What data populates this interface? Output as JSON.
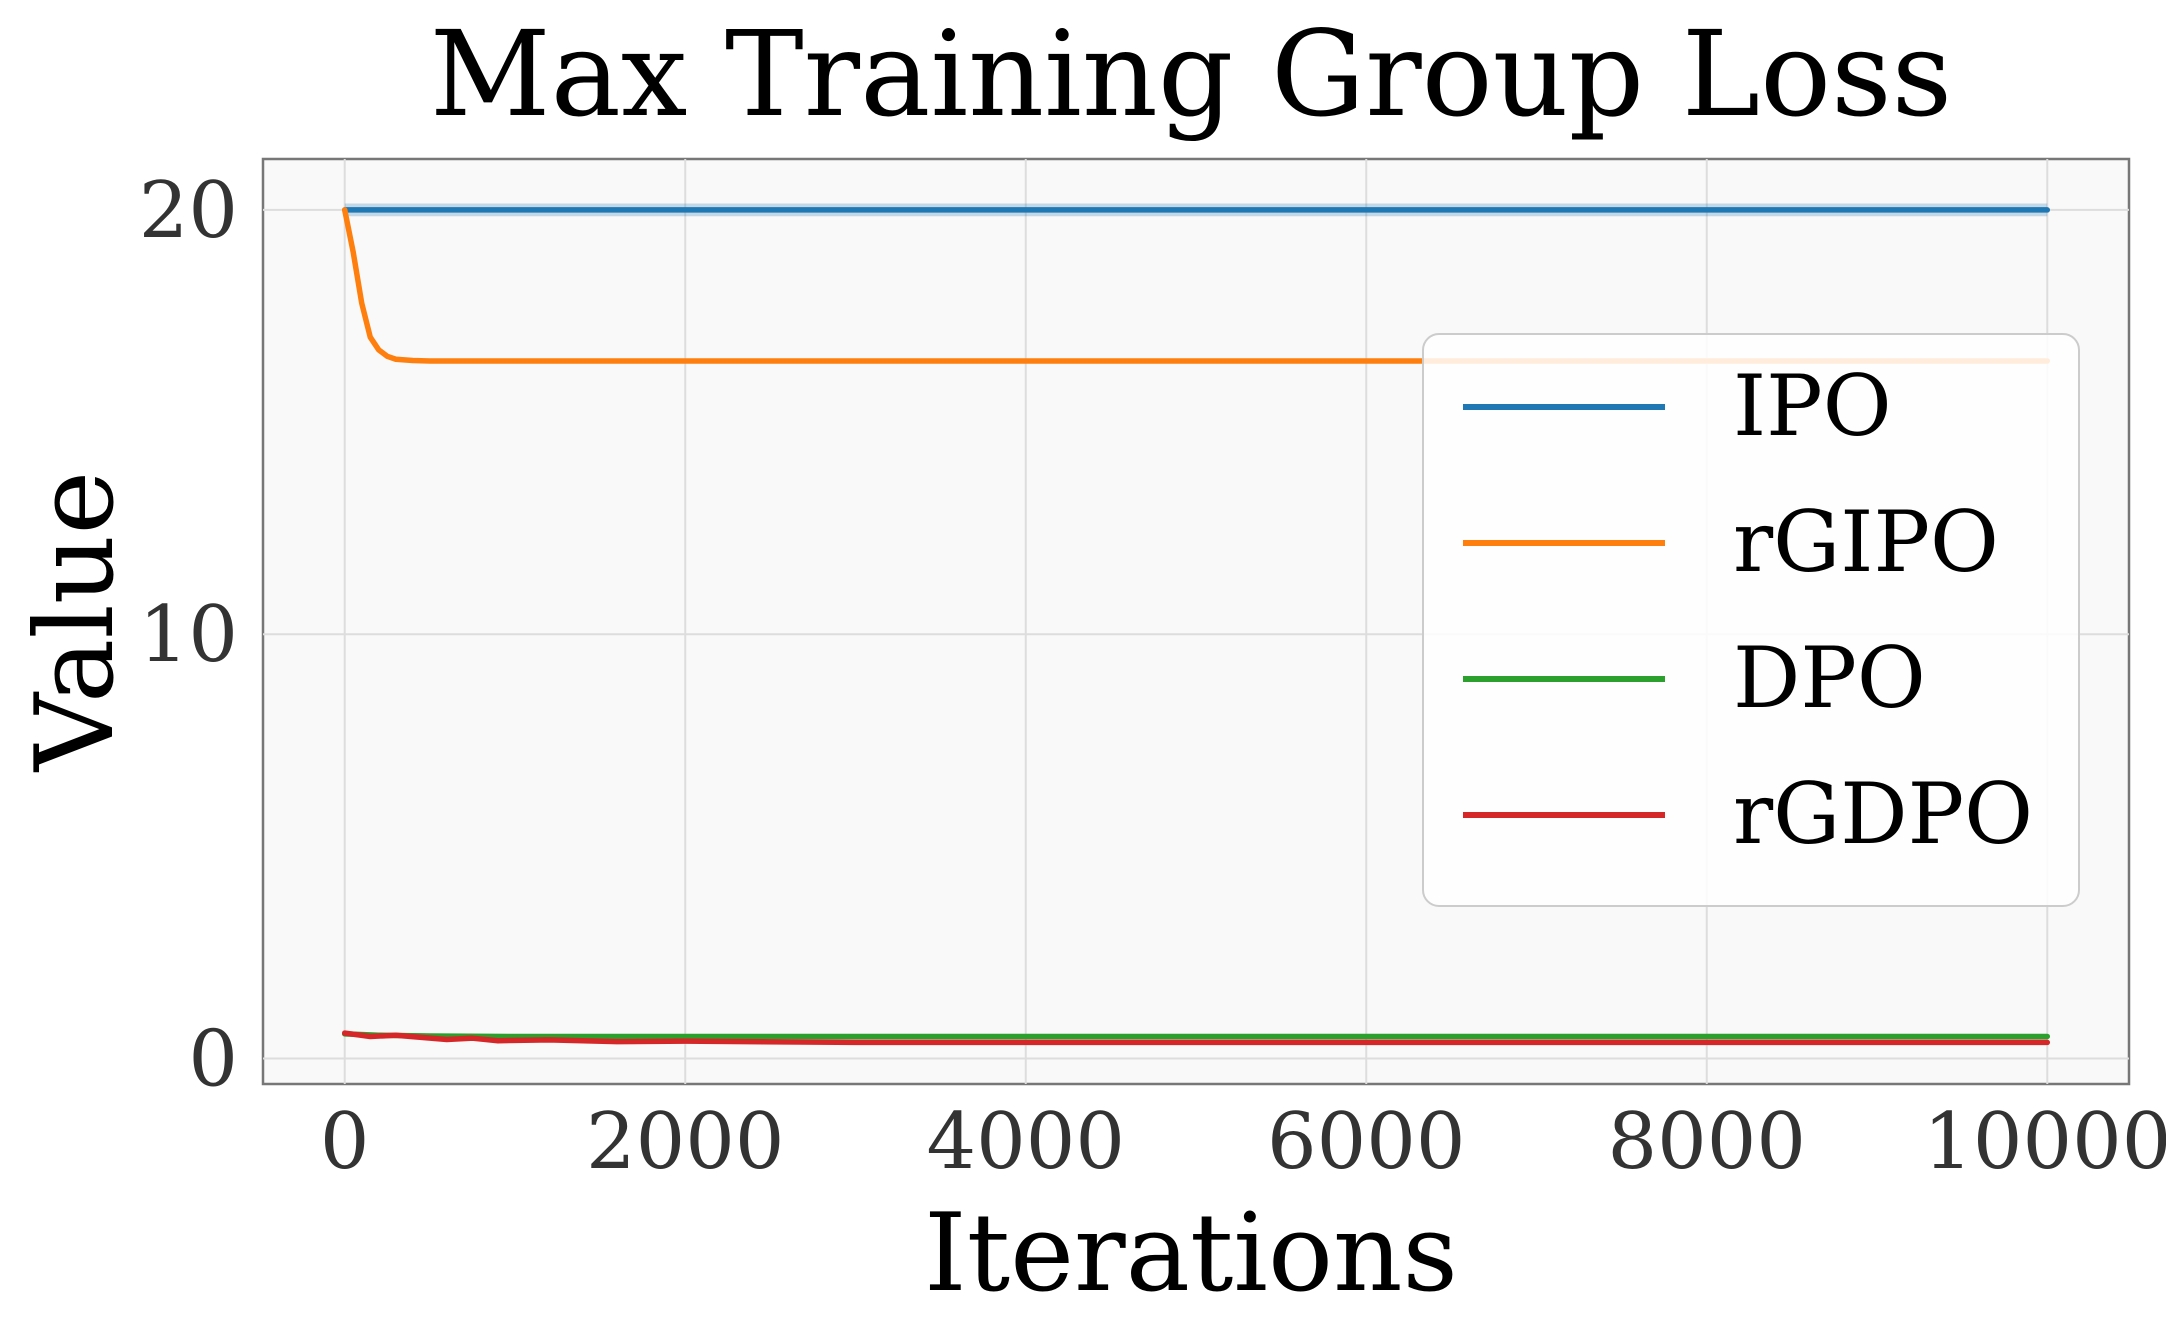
{
  "chart_data": {
    "type": "line",
    "title": "Max Training Group Loss",
    "xlabel": "Iterations",
    "ylabel": "Value",
    "xlim": [
      -480,
      10480
    ],
    "ylim": [
      -0.6,
      21.2
    ],
    "xticks": [
      0,
      2000,
      4000,
      6000,
      8000,
      10000
    ],
    "xtick_labels": [
      "0",
      "2000",
      "4000",
      "6000",
      "8000",
      "10000"
    ],
    "yticks": [
      0,
      10,
      20
    ],
    "ytick_labels": [
      "0",
      "10",
      "20"
    ],
    "grid": true,
    "legend_position": "center-right",
    "series": [
      {
        "name": "IPO",
        "color": "#1f77b4",
        "band": 0.15,
        "x": [
          0,
          10000
        ],
        "values": [
          20.0,
          20.0
        ]
      },
      {
        "name": "rGIPO",
        "color": "#ff7f0e",
        "x": [
          0,
          50,
          100,
          150,
          200,
          250,
          300,
          400,
          500,
          700,
          1000,
          2000,
          4000,
          6000,
          8000,
          10000
        ],
        "values": [
          20.0,
          19.0,
          17.8,
          17.0,
          16.7,
          16.55,
          16.48,
          16.45,
          16.44,
          16.44,
          16.44,
          16.44,
          16.44,
          16.44,
          16.44,
          16.44
        ]
      },
      {
        "name": "DPO",
        "color": "#2ca02c",
        "x": [
          0,
          200,
          500,
          1000,
          2000,
          4000,
          6000,
          8000,
          10000
        ],
        "values": [
          0.58,
          0.55,
          0.53,
          0.52,
          0.52,
          0.52,
          0.52,
          0.52,
          0.52
        ]
      },
      {
        "name": "rGDPO",
        "color": "#d62728",
        "x": [
          0,
          150,
          300,
          450,
          600,
          750,
          900,
          1200,
          1600,
          2000,
          3000,
          4000,
          6000,
          8000,
          10000
        ],
        "values": [
          0.6,
          0.52,
          0.55,
          0.5,
          0.45,
          0.48,
          0.42,
          0.44,
          0.4,
          0.41,
          0.38,
          0.38,
          0.38,
          0.38,
          0.38
        ]
      }
    ]
  }
}
